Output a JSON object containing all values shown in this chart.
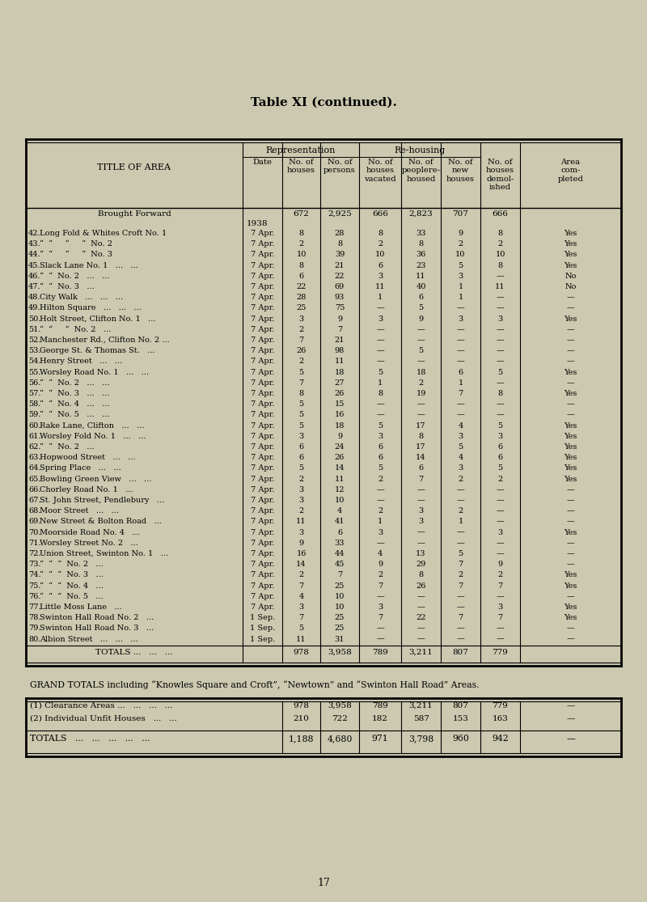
{
  "title": "Table XI (continued).",
  "bg_color": "#ccc9b0",
  "page_number": "17",
  "grand_totals_text": "GRAND TOTALS including “Knowles Square and Croft”, “Newtown” and “Swinton Hall Road” Areas.",
  "brought_forward": {
    "label": "Brought Forward",
    "date": "1938",
    "houses": "672",
    "persons": "2,925",
    "vacated": "666",
    "rehoused": "2,823",
    "new": "707",
    "demolished": "666",
    "completed": ""
  },
  "rows": [
    [
      "42.",
      "Long Fold & Whites Croft No. 1",
      "7 Apr.",
      "8",
      "28",
      "8",
      "33",
      "9",
      "8",
      "Yes"
    ],
    [
      "43.",
      "“  “     “     “  No. 2",
      "7 Apr.",
      "2",
      "8",
      "2",
      "8",
      "2",
      "2",
      "Yes"
    ],
    [
      "44.",
      "“  “     “     “  No. 3",
      "7 Apr.",
      "10",
      "39",
      "10",
      "36",
      "10",
      "10",
      "Yes"
    ],
    [
      "45.",
      "Slack Lane No. 1   ...   ...",
      "7 Apr.",
      "8",
      "21",
      "6",
      "23",
      "5",
      "8",
      "Yes"
    ],
    [
      "46.",
      "“  “  No. 2   ...   ...",
      "7 Apr.",
      "6",
      "22",
      "3",
      "11",
      "3",
      "—",
      "No"
    ],
    [
      "47.",
      "“  “  No. 3   ...",
      "7 Apr.",
      "22",
      "69",
      "11",
      "40",
      "1",
      "11",
      "No"
    ],
    [
      "48.",
      "City Walk   ...   ...   ...",
      "7 Apr.",
      "28",
      "93",
      "1",
      "6",
      "1",
      "—",
      "—"
    ],
    [
      "49.",
      "Hilton Square   ...   ...   ...",
      "7 Apr.",
      "25",
      "75",
      "—",
      "5",
      "—",
      "—",
      "—"
    ],
    [
      "50.",
      "Holt Street, Clifton No. 1   ...",
      "7 Apr.",
      "3",
      "9",
      "3",
      "9",
      "3",
      "3",
      "Yes"
    ],
    [
      "51.",
      "“  “     “  No. 2   ...",
      "7 Apr.",
      "2",
      "7",
      "—",
      "—",
      "—",
      "—",
      "—"
    ],
    [
      "52.",
      "Manchester Rd., Clifton No. 2 ...",
      "7 Apr.",
      "7",
      "21",
      "—",
      "—",
      "—",
      "—",
      "—"
    ],
    [
      "53.",
      "George St. & Thomas St.   ...",
      "7 Apr.",
      "26",
      "98",
      "—",
      "5",
      "—",
      "—",
      "—"
    ],
    [
      "54.",
      "Henry Street   ...   ...",
      "7 Apr.",
      "2",
      "11",
      "—",
      "—",
      "—",
      "—",
      "—"
    ],
    [
      "55.",
      "Worsley Road No. 1   ...   ...",
      "7 Apr.",
      "5",
      "18",
      "5",
      "18",
      "6",
      "5",
      "Yes"
    ],
    [
      "56.",
      "“  “  No. 2   ...   ...",
      "7 Apr.",
      "7",
      "27",
      "1",
      "2",
      "1",
      "—",
      "—"
    ],
    [
      "57.",
      "“  “  No. 3   ...   ...",
      "7 Apr.",
      "8",
      "26",
      "8",
      "19",
      "7",
      "8",
      "Yes"
    ],
    [
      "58.",
      "“  “  No. 4   ...   ...",
      "7 Apr.",
      "5",
      "15",
      "—",
      "—",
      "—",
      "—",
      "—"
    ],
    [
      "59.",
      "“  “  No. 5   ...   ...",
      "7 Apr.",
      "5",
      "16",
      "—",
      "—",
      "—",
      "—",
      "—"
    ],
    [
      "60.",
      "Rake Lane, Clifton   ...   ...",
      "7 Apr.",
      "5",
      "18",
      "5",
      "17",
      "4",
      "5",
      "Yes"
    ],
    [
      "61.",
      "Worsley Fold No. 1   ...   ...",
      "7 Apr.",
      "3",
      "9",
      "3",
      "8",
      "3",
      "3",
      "Yes"
    ],
    [
      "62.",
      "“  “  No. 2   ...",
      "7 Apr.",
      "6",
      "24",
      "6",
      "17",
      "5",
      "6",
      "Yes"
    ],
    [
      "63.",
      "Hopwood Street   ...   ...",
      "7 Apr.",
      "6",
      "26",
      "6",
      "14",
      "4",
      "6",
      "Yes"
    ],
    [
      "64.",
      "Spring Place   ...   ...",
      "7 Apr.",
      "5",
      "14",
      "5",
      "6",
      "3",
      "5",
      "Yes"
    ],
    [
      "65.",
      "Bowling Green View   ...   ...",
      "7 Apr.",
      "2",
      "11",
      "2",
      "7",
      "2",
      "2",
      "Yes"
    ],
    [
      "66.",
      "Chorley Road No. 1   ...",
      "7 Apr.",
      "3",
      "12",
      "—",
      "—",
      "—",
      "—",
      "—"
    ],
    [
      "67.",
      "St. John Street, Pendlebury   ...",
      "7 Apr.",
      "3",
      "10",
      "—",
      "—",
      "—",
      "—",
      "—"
    ],
    [
      "68.",
      "Moor Street   ...   ...",
      "7 Apr.",
      "2",
      "4",
      "2",
      "3",
      "2",
      "—",
      "—"
    ],
    [
      "69.",
      "New Street & Bolton Road   ...",
      "7 Apr.",
      "11",
      "41",
      "1",
      "3",
      "1",
      "—",
      "—"
    ],
    [
      "70.",
      "Moorside Road No. 4   ...",
      "7 Apr.",
      "3",
      "6",
      "3",
      "—",
      "—",
      "3",
      "Yes"
    ],
    [
      "71.",
      "Worsley Street No. 2   ...",
      "7 Apr.",
      "9",
      "33",
      "—",
      "—",
      "—",
      "—",
      "—"
    ],
    [
      "72.",
      "Union Street, Swinton No. 1   ...",
      "7 Apr.",
      "16",
      "44",
      "4",
      "13",
      "5",
      "—",
      "—"
    ],
    [
      "73.",
      "“  “  “  No. 2   ...",
      "7 Apr.",
      "14",
      "45",
      "9",
      "29",
      "7",
      "9",
      "—"
    ],
    [
      "74.",
      "“  “  “  No. 3   ...",
      "7 Apr.",
      "2",
      "7",
      "2",
      "8",
      "2",
      "2",
      "Yes"
    ],
    [
      "75.",
      "“  “  “  No. 4   ...",
      "7 Apr.",
      "7",
      "25",
      "7",
      "26",
      "7",
      "7",
      "Yes"
    ],
    [
      "76.",
      "“  “  “  No. 5   ...",
      "7 Apr.",
      "4",
      "10",
      "—",
      "—",
      "—",
      "—",
      "—"
    ],
    [
      "77.",
      "Little Moss Lane   ...",
      "7 Apr.",
      "3",
      "10",
      "3",
      "—",
      "—",
      "3",
      "Yes"
    ],
    [
      "78.",
      "Swinton Hall Road No. 2   ...",
      "1 Sep.",
      "7",
      "25",
      "7",
      "22",
      "7",
      "7",
      "Yes"
    ],
    [
      "79.",
      "Swinton Hall Road No. 3   ...",
      "1 Sep.",
      "5",
      "25",
      "—",
      "—",
      "—",
      "—",
      "—"
    ],
    [
      "80.",
      "Albion Street   ...   ...   ...",
      "1 Sep.",
      "11",
      "31",
      "—",
      "—",
      "—",
      "—",
      "—"
    ]
  ],
  "totals_row": [
    "TOTALS ...",
    "978",
    "3,958",
    "789",
    "3,211",
    "807",
    "779",
    ""
  ],
  "grand_table": {
    "rows": [
      [
        "(1) Clearance Areas ...   ...   ...   ...",
        "978",
        "3,958",
        "789",
        "3,211",
        "807",
        "779",
        "—"
      ],
      [
        "(2) Individual Unfit Houses   ...   ...",
        "210",
        "722",
        "182",
        "587",
        "153",
        "163",
        "—"
      ]
    ],
    "totals": [
      "TOTALS   ...   ...   ...   ...   ...",
      "1,188",
      "4,680",
      "971",
      "3,798",
      "960",
      "942",
      "—"
    ]
  }
}
